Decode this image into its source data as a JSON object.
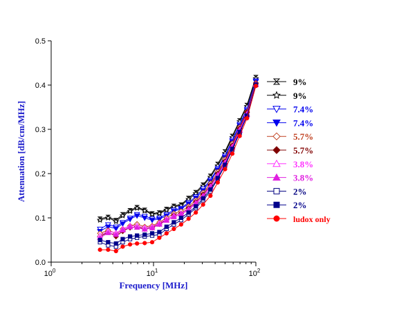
{
  "chart_data": {
    "type": "line",
    "title": "",
    "xlabel": "Frequency [MHz]",
    "ylabel": "Attenuation [dB/cm/MHz]",
    "xscale": "log",
    "xlim": [
      1,
      100
    ],
    "ylim": [
      0,
      0.5
    ],
    "xticks": [
      {
        "value": 1,
        "base": "10",
        "exp": "0"
      },
      {
        "value": 10,
        "base": "10",
        "exp": "1"
      },
      {
        "value": 100,
        "base": "10",
        "exp": "2"
      }
    ],
    "yticks": [
      "0.0",
      "0.1",
      "0.2",
      "0.3",
      "0.4",
      "0.5"
    ],
    "grid": false,
    "legend_position": "right",
    "x": [
      3,
      3.6,
      4.3,
      5,
      5.9,
      6.9,
      8.2,
      9.7,
      11.4,
      13.4,
      15.8,
      18.6,
      22,
      25.9,
      30.5,
      36,
      42.4,
      50,
      58.9,
      69.5,
      81.9,
      100
    ],
    "series": [
      {
        "name": "9%",
        "color": "#000000",
        "marker": "bowtie",
        "filled": false,
        "shape_name": "hourglass",
        "values": [
          0.098,
          0.102,
          0.095,
          0.108,
          0.117,
          0.124,
          0.118,
          0.11,
          0.112,
          0.12,
          0.127,
          0.13,
          0.145,
          0.158,
          0.175,
          0.195,
          0.222,
          0.25,
          0.285,
          0.32,
          0.355,
          0.418
        ]
      },
      {
        "name": "9%",
        "color": "#000000",
        "marker": "star",
        "filled": false,
        "shape_name": "star",
        "values": [
          0.095,
          0.1,
          0.092,
          0.105,
          0.115,
          0.122,
          0.116,
          0.108,
          0.11,
          0.118,
          0.125,
          0.128,
          0.142,
          0.155,
          0.172,
          0.192,
          0.218,
          0.246,
          0.282,
          0.318,
          0.352,
          0.415
        ]
      },
      {
        "name": "7.4%",
        "color": "#0000ee",
        "marker": "triangle-down",
        "filled": false,
        "shape_name": "triangle-down-open",
        "values": [
          0.075,
          0.085,
          0.08,
          0.09,
          0.1,
          0.108,
          0.104,
          0.098,
          0.1,
          0.108,
          0.118,
          0.122,
          0.135,
          0.148,
          0.166,
          0.186,
          0.212,
          0.24,
          0.276,
          0.312,
          0.346,
          0.41
        ]
      },
      {
        "name": "7.4%",
        "color": "#0000ee",
        "marker": "triangle-down",
        "filled": true,
        "shape_name": "triangle-down-filled",
        "values": [
          0.07,
          0.08,
          0.076,
          0.087,
          0.097,
          0.105,
          0.1,
          0.095,
          0.097,
          0.105,
          0.115,
          0.12,
          0.132,
          0.145,
          0.162,
          0.183,
          0.209,
          0.237,
          0.273,
          0.309,
          0.343,
          0.408
        ]
      },
      {
        "name": "5.7%",
        "color": "#c04020",
        "marker": "diamond",
        "filled": false,
        "shape_name": "diamond-open",
        "values": [
          0.065,
          0.072,
          0.065,
          0.075,
          0.082,
          0.086,
          0.08,
          0.082,
          0.09,
          0.1,
          0.11,
          0.115,
          0.126,
          0.14,
          0.157,
          0.178,
          0.204,
          0.232,
          0.268,
          0.305,
          0.34,
          0.405
        ]
      },
      {
        "name": "5.7%",
        "color": "#800000",
        "marker": "diamond",
        "filled": true,
        "shape_name": "diamond-filled",
        "values": [
          0.058,
          0.068,
          0.058,
          0.07,
          0.078,
          0.08,
          0.075,
          0.078,
          0.086,
          0.096,
          0.106,
          0.11,
          0.122,
          0.136,
          0.153,
          0.174,
          0.2,
          0.228,
          0.264,
          0.302,
          0.338,
          0.403
        ]
      },
      {
        "name": "3.8%",
        "color": "#ff33ff",
        "marker": "triangle-up",
        "filled": false,
        "shape_name": "triangle-up-open",
        "values": [
          0.06,
          0.07,
          0.066,
          0.075,
          0.082,
          0.082,
          0.078,
          0.08,
          0.088,
          0.097,
          0.105,
          0.11,
          0.12,
          0.134,
          0.15,
          0.171,
          0.197,
          0.225,
          0.261,
          0.299,
          0.335,
          0.402
        ]
      },
      {
        "name": "3.8%",
        "color": "#e020e0",
        "marker": "triangle-up",
        "filled": true,
        "shape_name": "triangle-up-filled",
        "values": [
          0.055,
          0.066,
          0.062,
          0.072,
          0.079,
          0.078,
          0.074,
          0.077,
          0.085,
          0.094,
          0.102,
          0.108,
          0.118,
          0.132,
          0.148,
          0.169,
          0.195,
          0.223,
          0.259,
          0.297,
          0.333,
          0.401
        ]
      },
      {
        "name": "2%",
        "color": "#000080",
        "marker": "square",
        "filled": false,
        "shape_name": "square-open",
        "values": [
          0.045,
          0.038,
          0.035,
          0.045,
          0.052,
          0.055,
          0.058,
          0.06,
          0.062,
          0.075,
          0.085,
          0.095,
          0.108,
          0.122,
          0.14,
          0.16,
          0.188,
          0.218,
          0.254,
          0.292,
          0.33,
          0.4
        ]
      },
      {
        "name": "2%",
        "color": "#00008b",
        "marker": "square",
        "filled": true,
        "shape_name": "square-filled",
        "values": [
          0.05,
          0.045,
          0.042,
          0.052,
          0.058,
          0.06,
          0.062,
          0.065,
          0.068,
          0.08,
          0.09,
          0.1,
          0.112,
          0.126,
          0.144,
          0.164,
          0.19,
          0.22,
          0.256,
          0.294,
          0.331,
          0.401
        ]
      },
      {
        "name": "ludox only",
        "color": "#ff0000",
        "marker": "circle",
        "filled": true,
        "shape_name": "circle-filled",
        "values": [
          0.028,
          0.028,
          0.025,
          0.035,
          0.04,
          0.042,
          0.043,
          0.045,
          0.055,
          0.065,
          0.075,
          0.085,
          0.098,
          0.112,
          0.13,
          0.15,
          0.18,
          0.21,
          0.245,
          0.285,
          0.325,
          0.398
        ]
      }
    ]
  }
}
